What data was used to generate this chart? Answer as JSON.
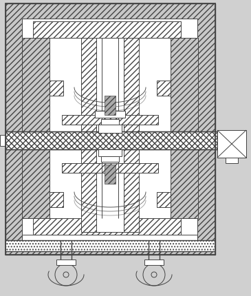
{
  "lc": "#444444",
  "lw": 0.7,
  "lwt": 1.0,
  "white": "#ffffff",
  "light_gray": "#e0e0e0",
  "hatch_bg": "#cccccc"
}
